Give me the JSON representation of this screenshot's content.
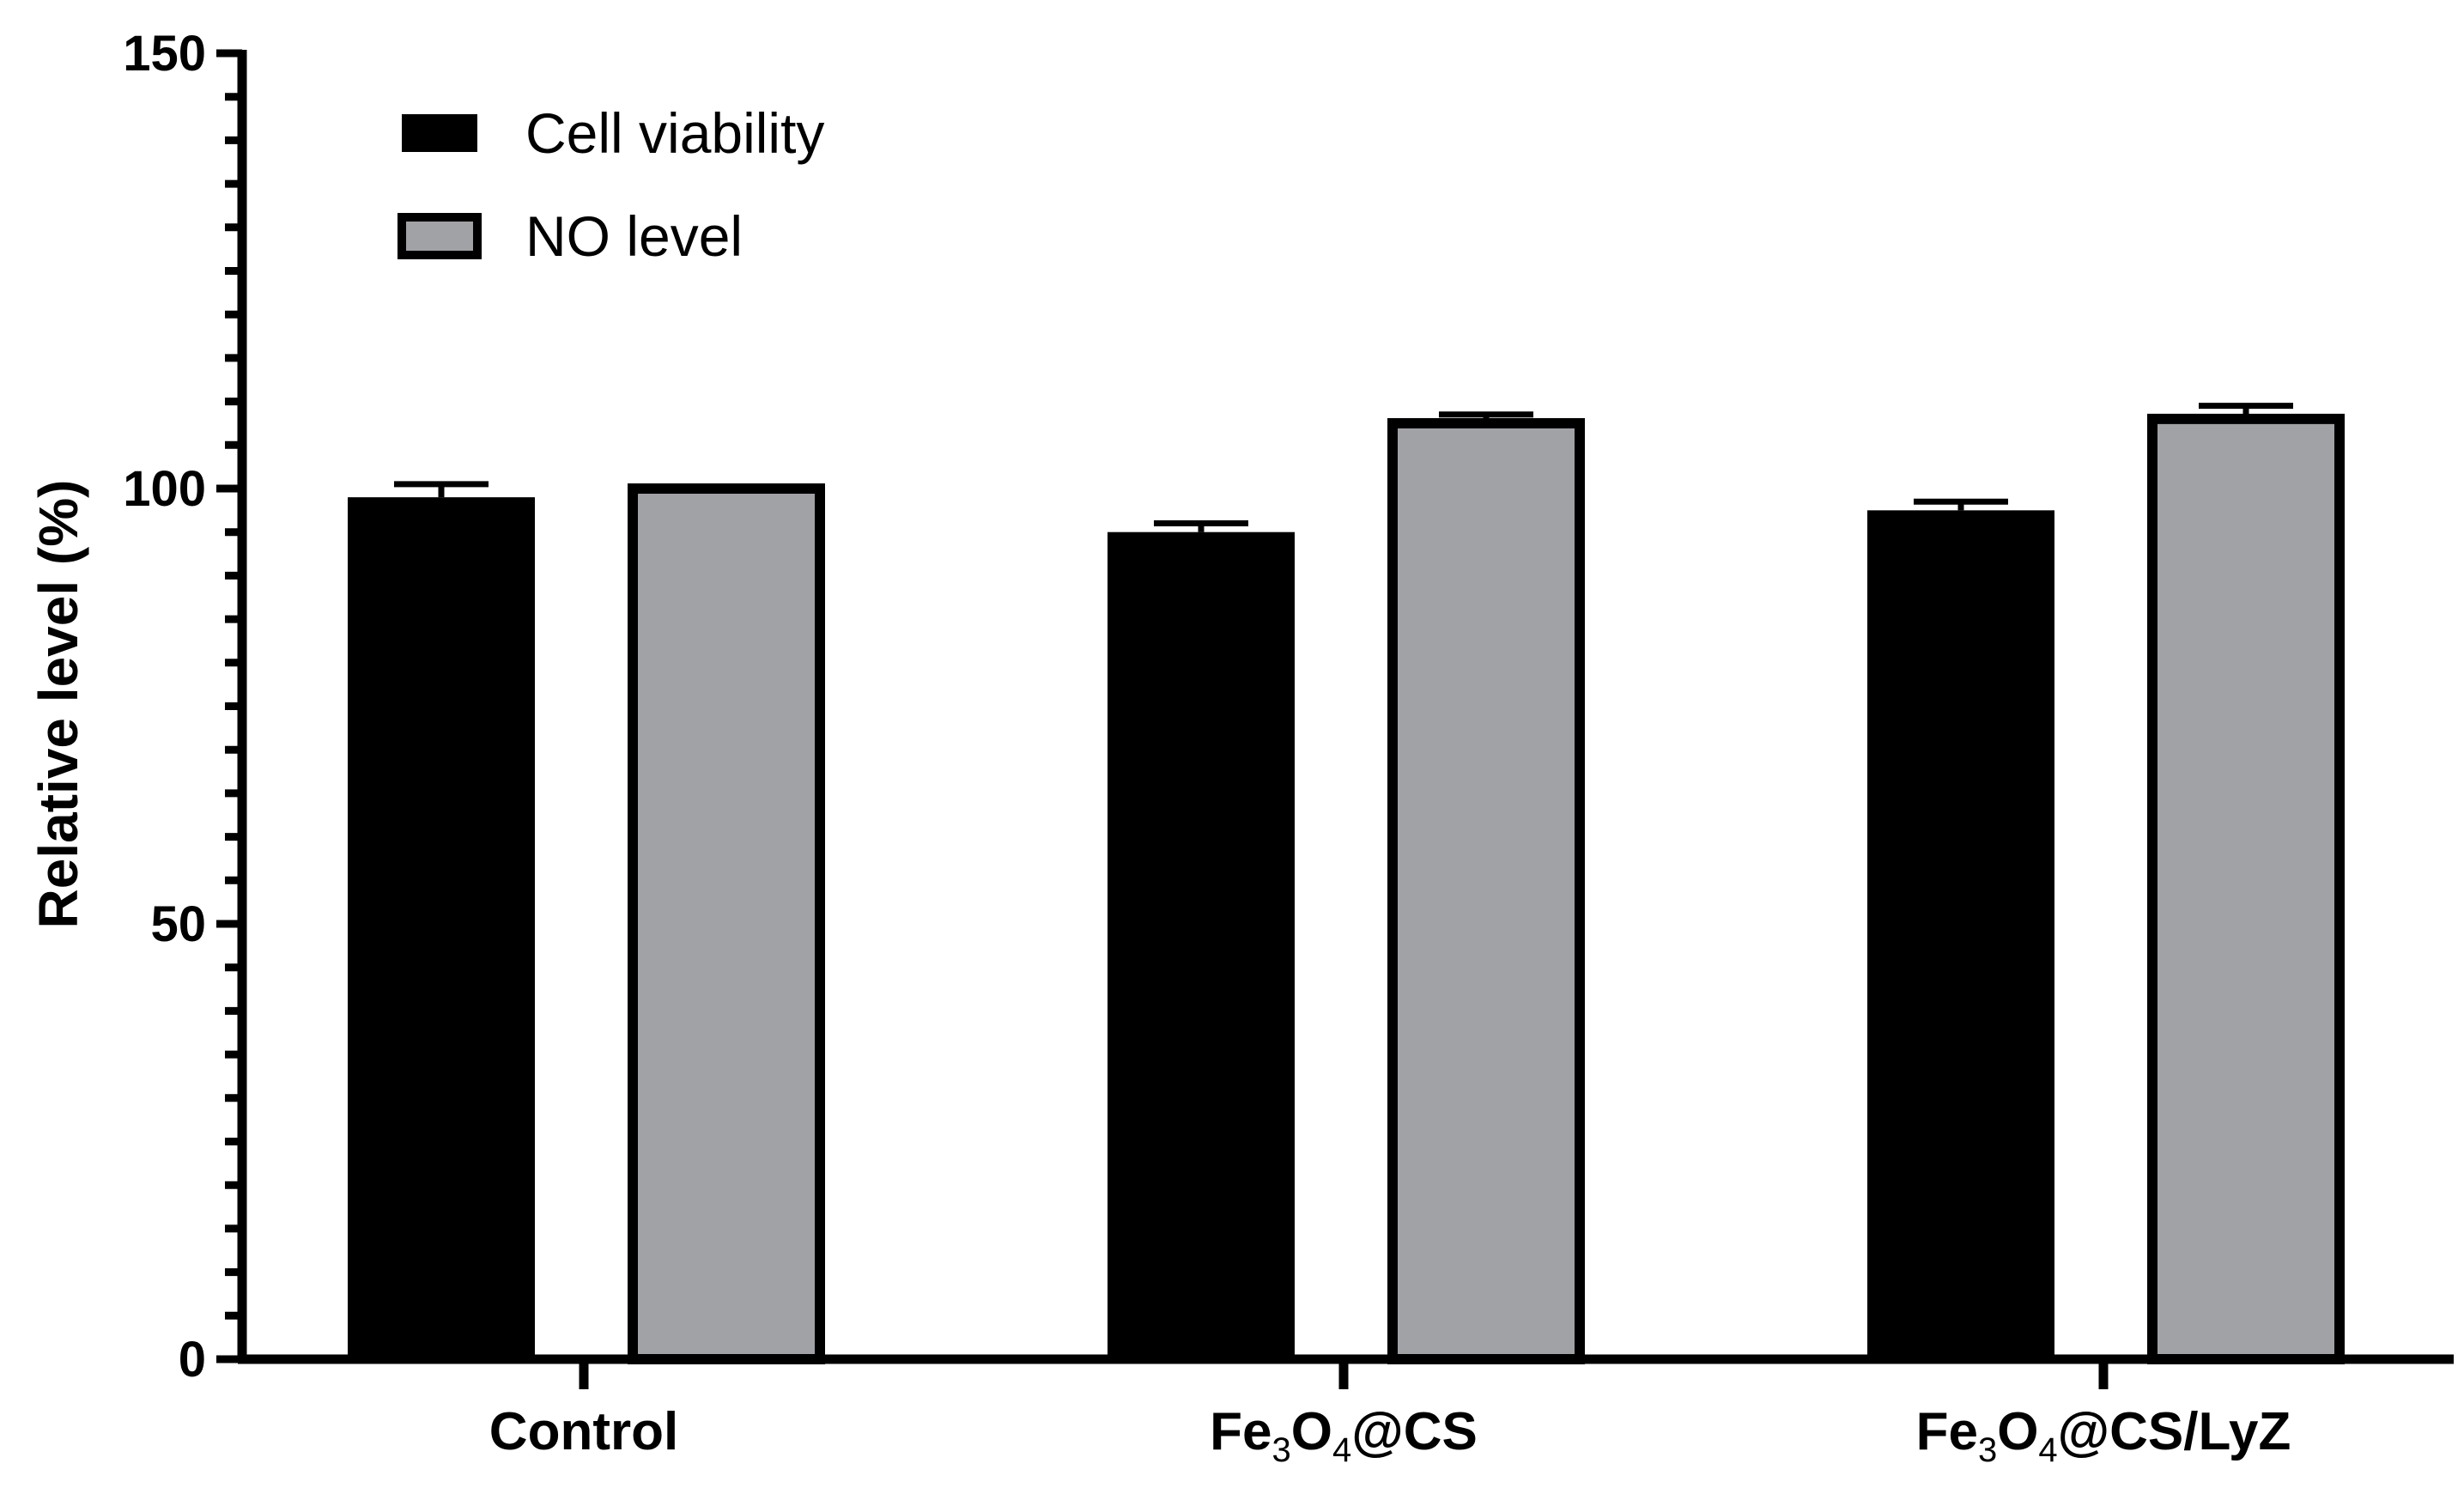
{
  "chart_data": {
    "type": "bar",
    "title": "",
    "xlabel": "",
    "ylabel": "Relative level (%)",
    "ylim": [
      0,
      150
    ],
    "yticks": [
      0,
      50,
      100,
      150
    ],
    "grid": false,
    "legend_position": "top-left",
    "categories": [
      {
        "main": "Control",
        "parts": [
          {
            "t": "Control",
            "sub": false
          }
        ]
      },
      {
        "main": "Fe3O4@CS",
        "parts": [
          {
            "t": "Fe",
            "sub": false
          },
          {
            "t": "3",
            "sub": true
          },
          {
            "t": "O",
            "sub": false
          },
          {
            "t": "4",
            "sub": true
          },
          {
            "t": "@CS",
            "sub": false
          }
        ]
      },
      {
        "main": "Fe3O4@CS/LyZ",
        "parts": [
          {
            "t": "Fe",
            "sub": false
          },
          {
            "t": "3",
            "sub": true
          },
          {
            "t": "O",
            "sub": false
          },
          {
            "t": "4",
            "sub": true
          },
          {
            "t": "@CS/LyZ",
            "sub": false
          }
        ]
      }
    ],
    "series": [
      {
        "name": "Cell viability",
        "color": "#000000",
        "values": [
          99,
          95,
          97.5
        ],
        "errors": [
          1.5,
          1.0,
          1.0
        ]
      },
      {
        "name": "NO level",
        "color": "#a1a2a6",
        "values": [
          100,
          107.5,
          108
        ],
        "errors": [
          0,
          1.0,
          1.5
        ]
      }
    ]
  }
}
